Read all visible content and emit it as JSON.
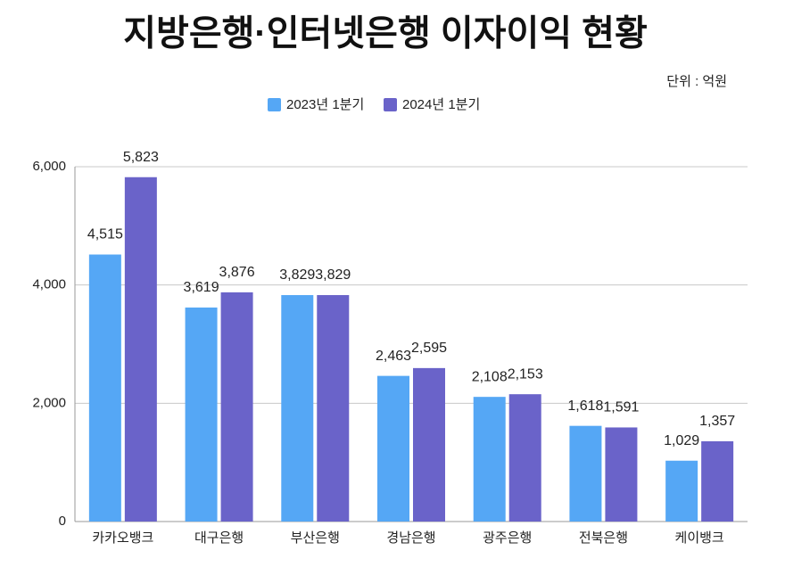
{
  "chart_data": {
    "type": "bar",
    "title": "지방은행·인터넷은행 이자이익 현황",
    "unit_note": "단위 : 억원",
    "categories": [
      "카카오뱅크",
      "대구은행",
      "부산은행",
      "경남은행",
      "광주은행",
      "전북은행",
      "케이뱅크"
    ],
    "series": [
      {
        "name": "2023년 1분기",
        "color": "#55a7f5",
        "values": [
          4515,
          3619,
          3829,
          2463,
          2108,
          1618,
          1029
        ],
        "value_labels": [
          "4,515",
          "3,619",
          "3,829",
          "2,463",
          "2,108",
          "1,618",
          "1,029"
        ]
      },
      {
        "name": "2024년 1분기",
        "color": "#6a63c9",
        "values": [
          5823,
          3876,
          3829,
          2595,
          2153,
          1591,
          1357
        ],
        "value_labels": [
          "5,823",
          "3,876",
          "3,829",
          "2,595",
          "2,153",
          "1,591",
          "1,357"
        ]
      }
    ],
    "ylim": [
      0,
      6000
    ],
    "yticks": [
      0,
      {
        "value": 2000,
        "label": "2,000"
      },
      {
        "value": 4000,
        "label": "4,000"
      },
      {
        "value": 6000,
        "label": "6,000"
      }
    ],
    "grid": true,
    "legend": "top"
  }
}
